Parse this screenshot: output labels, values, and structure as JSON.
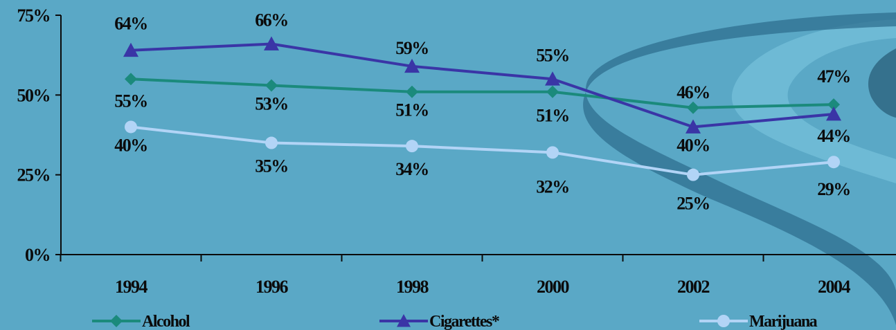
{
  "chart_data": {
    "type": "line",
    "categories": [
      "1994",
      "1996",
      "1998",
      "2000",
      "2002",
      "2004"
    ],
    "y_ticks": [
      "0%",
      "25%",
      "50%",
      "75%"
    ],
    "ylim": [
      0,
      75
    ],
    "grid": false,
    "legend_position": "bottom",
    "series": [
      {
        "name": "Alcohol",
        "marker": "diamond",
        "color": "#1b8a7c",
        "values": [
          55,
          53,
          51,
          51,
          46,
          47
        ],
        "labels": [
          "55%",
          "53%",
          "51%",
          "51%",
          "46%",
          "47%"
        ]
      },
      {
        "name": "Cigarettes*",
        "marker": "triangle",
        "color": "#3a35a6",
        "values": [
          64,
          66,
          59,
          55,
          40,
          44
        ],
        "labels": [
          "64%",
          "66%",
          "59%",
          "55%",
          "40%",
          "44%"
        ]
      },
      {
        "name": "Marijuana",
        "marker": "circle",
        "color": "#b2d4f6",
        "values": [
          40,
          35,
          34,
          32,
          25,
          29
        ],
        "labels": [
          "40%",
          "35%",
          "34%",
          "32%",
          "25%",
          "29%"
        ]
      }
    ]
  },
  "colors": {
    "background": "#5aa8c6",
    "axis": "#0b0b0b",
    "swoosh_dark": "#2f6f8f",
    "swoosh_light": "#7cc6e0"
  }
}
